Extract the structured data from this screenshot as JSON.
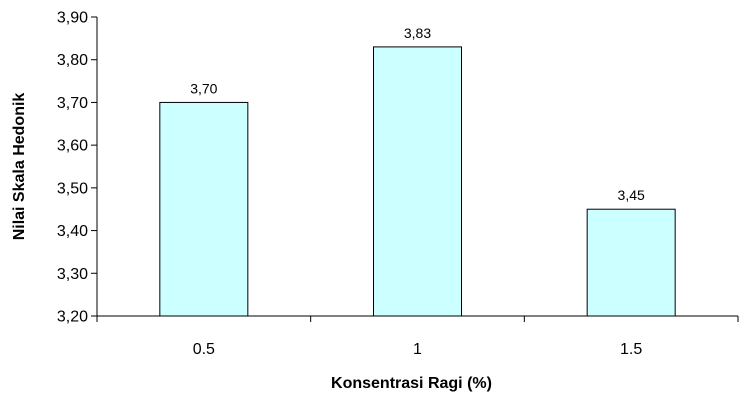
{
  "chart_data": {
    "type": "bar",
    "title": "",
    "xlabel": "Konsentrasi Ragi (%)",
    "ylabel": "Nilai Skala Hedonik",
    "categories": [
      "0.5",
      "1",
      "1.5"
    ],
    "values": [
      3.7,
      3.83,
      3.45
    ],
    "value_labels": [
      "3,70",
      "3,83",
      "3,45"
    ],
    "ylim": [
      3.2,
      3.9
    ],
    "yticks": [
      3.2,
      3.3,
      3.4,
      3.5,
      3.6,
      3.7,
      3.8,
      3.9
    ],
    "ytick_labels": [
      "3,20",
      "3,30",
      "3,40",
      "3,50",
      "3,60",
      "3,70",
      "3,80",
      "3,90"
    ],
    "grid": false,
    "legend": "none",
    "bar_fill": "#ccffff",
    "bar_stroke": "#000000"
  }
}
